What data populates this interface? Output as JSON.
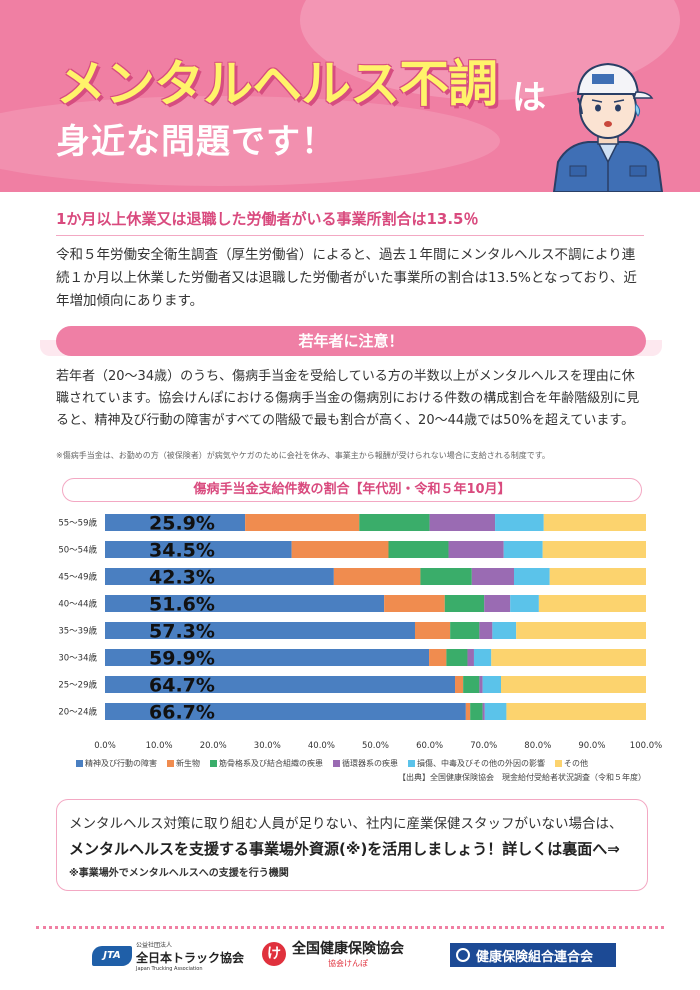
{
  "header": {
    "title_main": "メンタルヘルス不調",
    "title_particle": "は",
    "title_sub": "身近な問題です！"
  },
  "section1": {
    "heading": "1か月以上休業又は退職した労働者がいる事業所割合は13.5％",
    "body": "令和５年労働安全衛生調査（厚生労働省）によると、過去１年間にメンタルヘルス不調により連続１か月以上休業した労働者又は退職した労働者がいた事業所の割合は13.5%となっており、近年増加傾向にあります。"
  },
  "section2": {
    "pill": "若年者に注意！",
    "body": "若年者（20～34歳）のうち、傷病手当金を受給している方の半数以上がメンタルヘルスを理由に休職されています。協会けんぽにおける傷病手当金の傷病別における件数の構成割合を年齢階級別に見ると、精神及び行動の障害がすべての階級で最も割合が高く、20～44歳では50%を超えています。",
    "note": "※傷病手当金は、お勤めの方（被保険者）が病気やケガのために会社を休み、事業主から報酬が受けられない場合に支給される制度です。"
  },
  "chart_data": {
    "type": "bar",
    "orientation": "horizontal",
    "stacked": true,
    "title": "傷病手当金支給件数の割合【年代別・令和５年10月】",
    "categories": [
      "55～59歳",
      "50～54歳",
      "45～49歳",
      "40～44歳",
      "35～39歳",
      "30～34歳",
      "25～29歳",
      "20～24歳"
    ],
    "highlight_labels": [
      "25.9%",
      "34.5%",
      "42.3%",
      "51.6%",
      "57.3%",
      "59.9%",
      "64.7%",
      "66.7%"
    ],
    "series": [
      {
        "name": "精神及び行動の障害",
        "color": "#4a7fc1",
        "values": [
          25.9,
          34.5,
          42.3,
          51.6,
          57.3,
          59.9,
          64.7,
          66.7
        ]
      },
      {
        "name": "新生物",
        "color": "#f08c4f",
        "values": [
          21.1,
          17.9,
          16.0,
          11.2,
          6.5,
          3.2,
          1.5,
          0.8
        ]
      },
      {
        "name": "筋骨格系及び結合組織の疾患",
        "color": "#3aad6a",
        "values": [
          13.0,
          11.1,
          9.5,
          7.3,
          5.4,
          3.9,
          3.0,
          2.3
        ]
      },
      {
        "name": "循環器系の疾患",
        "color": "#9a6bb3",
        "values": [
          12.1,
          10.2,
          7.8,
          4.8,
          2.4,
          1.2,
          0.6,
          0.4
        ]
      },
      {
        "name": "損傷、中毒及びその他の外因の影響",
        "color": "#5bc3ea",
        "values": [
          9.0,
          7.2,
          6.6,
          5.3,
          4.4,
          3.2,
          3.4,
          4.0
        ]
      },
      {
        "name": "その他",
        "color": "#fcd36e",
        "values": [
          18.9,
          19.1,
          17.8,
          19.8,
          24.0,
          28.6,
          26.8,
          25.8
        ]
      }
    ],
    "xlim": [
      0,
      100
    ],
    "xticks": [
      "0.0%",
      "10.0%",
      "20.0%",
      "30.0%",
      "40.0%",
      "50.0%",
      "60.0%",
      "70.0%",
      "80.0%",
      "90.0%",
      "100.0%"
    ],
    "legend_position": "bottom",
    "source": "【出典】全国健康保険協会　現金給付受給者状況調査（令和５年度）"
  },
  "callout": {
    "line1": "メンタルヘルス対策に取り組む人員が足りない、社内に産業保健スタッフがいない場合は、",
    "line2": "メンタルヘルスを支援する事業場外資源(※)を活用しましょう！詳しくは裏面へ⇒",
    "line3": "※事業場外でメンタルヘルスへの支援を行う機関"
  },
  "logos": {
    "jta_mark": "JTA",
    "jta_small": "公益社団法人",
    "jta_name": "全日本トラック協会",
    "jta_en": "Japan Trucking Association",
    "kyokai_mark": "け",
    "kyokai_name": "全国健康保険協会",
    "kyokai_sub": "協会けんぽ",
    "kenporen_name": "健康保険組合連合会"
  }
}
